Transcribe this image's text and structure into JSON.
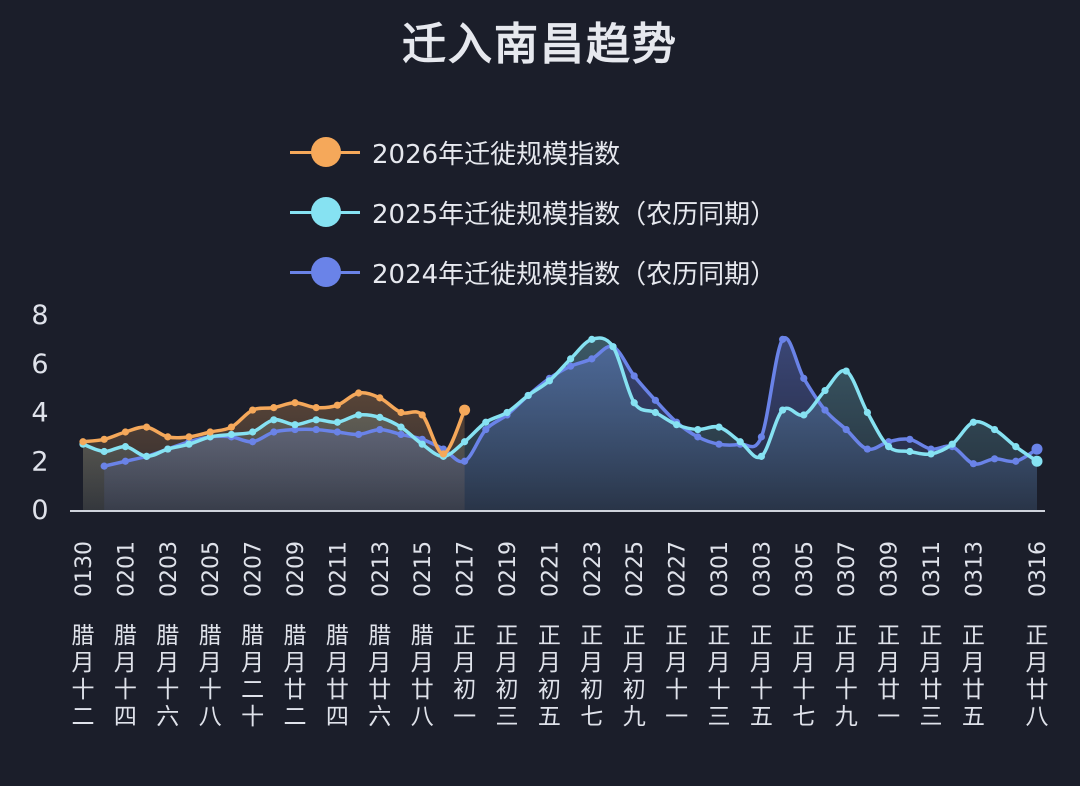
{
  "title": "迁入南昌趋势",
  "chart_data": {
    "type": "line",
    "title": "迁入南昌趋势",
    "legend_position": "top-center",
    "ylim": [
      0,
      8
    ],
    "yticks": [
      0,
      2,
      4,
      6,
      8
    ],
    "x": [
      "0130",
      "0131",
      "0201",
      "0202",
      "0203",
      "0204",
      "0205",
      "0206",
      "0207",
      "0208",
      "0209",
      "0210",
      "0211",
      "0212",
      "0213",
      "0214",
      "0215",
      "0216",
      "0217",
      "0218",
      "0219",
      "0220",
      "0221",
      "0222",
      "0223",
      "0224",
      "0225",
      "0226",
      "0227",
      "0228",
      "0301",
      "0302",
      "0303",
      "0304",
      "0305",
      "0306",
      "0307",
      "0308",
      "0309",
      "0310",
      "0311",
      "0312",
      "0313",
      "0314",
      "0315",
      "0316"
    ],
    "x_tick_labels": [
      "0130",
      "0201",
      "0203",
      "0205",
      "0207",
      "0209",
      "0211",
      "0213",
      "0215",
      "0217",
      "0219",
      "0221",
      "0223",
      "0225",
      "0227",
      "0301",
      "0303",
      "0305",
      "0307",
      "0309",
      "0311",
      "0313",
      "0316"
    ],
    "lunar_labels": [
      "腊月十二",
      "腊月十四",
      "腊月十六",
      "腊月十八",
      "腊月二十",
      "腊月廿二",
      "腊月廿四",
      "腊月廿六",
      "腊月廿八",
      "正月初一",
      "正月初三",
      "正月初五",
      "正月初七",
      "正月初九",
      "正月十一",
      "正月十三",
      "正月十五",
      "正月十七",
      "正月十九",
      "正月廿一",
      "正月廿三",
      "正月廿五",
      "正月廿八"
    ],
    "series": [
      {
        "name": "2026年迁徙规模指数",
        "color": "#f5a85a",
        "values": [
          2.8,
          2.9,
          3.2,
          3.4,
          3.0,
          3.0,
          3.2,
          3.4,
          4.1,
          4.2,
          4.4,
          4.2,
          4.3,
          4.8,
          4.6,
          4.0,
          3.9,
          2.3,
          4.1,
          null,
          null,
          null,
          null,
          null,
          null,
          null,
          null,
          null,
          null,
          null,
          null,
          null,
          null,
          null,
          null,
          null,
          null,
          null,
          null,
          null,
          null,
          null,
          null,
          null,
          null,
          null
        ]
      },
      {
        "name": "2025年迁徙规模指数（农历同期）",
        "color": "#86e2f2",
        "values": [
          2.7,
          2.4,
          2.6,
          2.2,
          2.5,
          2.7,
          3.0,
          3.1,
          3.2,
          3.7,
          3.5,
          3.7,
          3.6,
          3.9,
          3.8,
          3.4,
          2.7,
          2.2,
          2.8,
          3.6,
          4.0,
          4.7,
          5.3,
          6.2,
          7.0,
          6.7,
          4.4,
          4.0,
          3.5,
          3.3,
          3.4,
          2.8,
          2.2,
          4.1,
          3.9,
          4.9,
          5.7,
          4.0,
          2.6,
          2.4,
          2.3,
          2.7,
          3.6,
          3.3,
          2.6,
          2.0
        ]
      },
      {
        "name": "2024年迁徙规模指数（农历同期）",
        "color": "#6a83e8",
        "values": [
          null,
          1.8,
          2.0,
          2.2,
          2.5,
          2.8,
          3.0,
          3.0,
          2.8,
          3.2,
          3.3,
          3.3,
          3.2,
          3.1,
          3.3,
          3.1,
          2.9,
          2.5,
          2.0,
          3.3,
          3.9,
          4.7,
          5.4,
          5.9,
          6.2,
          6.7,
          5.5,
          4.5,
          3.6,
          3.0,
          2.7,
          2.7,
          3.0,
          7.0,
          5.4,
          4.1,
          3.3,
          2.5,
          2.8,
          2.9,
          2.5,
          2.6,
          1.9,
          2.1,
          2.0,
          2.5
        ]
      }
    ]
  }
}
